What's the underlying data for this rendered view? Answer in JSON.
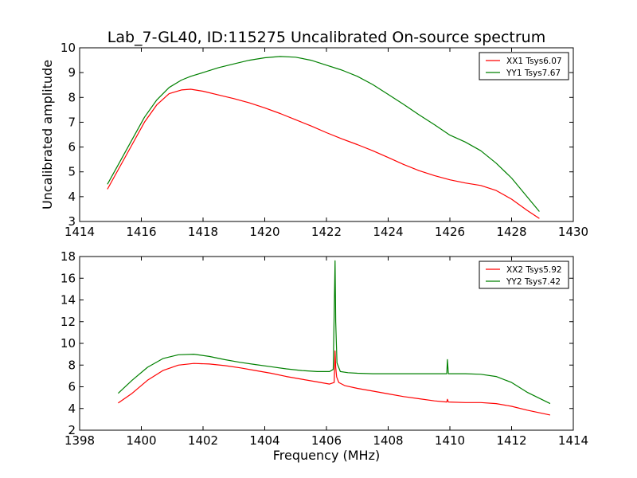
{
  "figure": {
    "title": "Lab_7-GL40, ID:115275 Uncalibrated On-source spectrum",
    "ylabel": "Uncalibrated amplitude",
    "xlabel": "Frequency (MHz)"
  },
  "chart_data": [
    {
      "type": "line",
      "title": "Lab_7-GL40, ID:115275 Uncalibrated On-source spectrum",
      "xlabel": "",
      "ylabel": "Uncalibrated amplitude",
      "xlim": [
        1414,
        1430
      ],
      "ylim": [
        3,
        10
      ],
      "xticks": [
        1414,
        1416,
        1418,
        1420,
        1422,
        1424,
        1426,
        1428,
        1430
      ],
      "yticks": [
        3,
        4,
        5,
        6,
        7,
        8,
        9,
        10
      ],
      "legend": "top-right",
      "grid": false,
      "series": [
        {
          "name": "XX1 Tsys6.07",
          "color": "#ff0000",
          "x": [
            1414.9,
            1415.3,
            1415.7,
            1416.1,
            1416.5,
            1416.9,
            1417.3,
            1417.6,
            1418.0,
            1418.5,
            1419.0,
            1419.5,
            1420.0,
            1420.5,
            1421.0,
            1421.5,
            1422.0,
            1422.5,
            1423.0,
            1423.5,
            1424.0,
            1424.5,
            1425.0,
            1425.5,
            1426.0,
            1426.5,
            1427.0,
            1427.5,
            1428.0,
            1428.5,
            1428.9
          ],
          "y": [
            4.3,
            5.2,
            6.1,
            7.0,
            7.7,
            8.15,
            8.3,
            8.33,
            8.25,
            8.1,
            7.95,
            7.78,
            7.58,
            7.35,
            7.1,
            6.85,
            6.58,
            6.33,
            6.1,
            5.85,
            5.58,
            5.3,
            5.05,
            4.85,
            4.68,
            4.55,
            4.45,
            4.25,
            3.9,
            3.45,
            3.12
          ]
        },
        {
          "name": "YY1 Tsys7.67",
          "color": "#008000",
          "x": [
            1414.9,
            1415.3,
            1415.7,
            1416.1,
            1416.5,
            1416.9,
            1417.3,
            1417.6,
            1418.0,
            1418.5,
            1419.0,
            1419.5,
            1420.0,
            1420.5,
            1421.0,
            1421.5,
            1422.0,
            1422.5,
            1423.0,
            1423.5,
            1424.0,
            1424.5,
            1425.0,
            1425.5,
            1426.0,
            1426.5,
            1427.0,
            1427.5,
            1428.0,
            1428.5,
            1428.9
          ],
          "y": [
            4.5,
            5.4,
            6.3,
            7.2,
            7.9,
            8.4,
            8.7,
            8.85,
            9.0,
            9.2,
            9.35,
            9.5,
            9.6,
            9.65,
            9.62,
            9.5,
            9.3,
            9.1,
            8.85,
            8.52,
            8.12,
            7.72,
            7.3,
            6.9,
            6.48,
            6.2,
            5.85,
            5.35,
            4.75,
            4.0,
            3.4
          ]
        }
      ]
    },
    {
      "type": "line",
      "title": "",
      "xlabel": "Frequency (MHz)",
      "ylabel": "",
      "xlim": [
        1398,
        1414
      ],
      "ylim": [
        2,
        18
      ],
      "xticks": [
        1398,
        1400,
        1402,
        1404,
        1406,
        1408,
        1410,
        1412,
        1414
      ],
      "yticks": [
        2,
        4,
        6,
        8,
        10,
        12,
        14,
        16,
        18
      ],
      "legend": "top-right",
      "grid": false,
      "series": [
        {
          "name": "XX2 Tsys5.92",
          "color": "#ff0000",
          "x": [
            1399.25,
            1399.7,
            1400.2,
            1400.7,
            1401.2,
            1401.7,
            1402.2,
            1402.7,
            1403.2,
            1403.7,
            1404.2,
            1404.7,
            1405.2,
            1405.7,
            1406.1,
            1406.25,
            1406.28,
            1406.3,
            1406.33,
            1406.4,
            1406.6,
            1407.0,
            1407.5,
            1408.0,
            1408.5,
            1409.0,
            1409.5,
            1409.9,
            1409.92,
            1409.95,
            1410.5,
            1411.0,
            1411.5,
            1412.0,
            1412.5,
            1413.25
          ],
          "y": [
            4.5,
            5.4,
            6.6,
            7.5,
            8.0,
            8.15,
            8.1,
            7.95,
            7.75,
            7.5,
            7.25,
            6.95,
            6.7,
            6.45,
            6.25,
            6.4,
            9.3,
            7.8,
            6.9,
            6.4,
            6.1,
            5.85,
            5.6,
            5.35,
            5.1,
            4.9,
            4.7,
            4.6,
            4.85,
            4.6,
            4.55,
            4.55,
            4.45,
            4.2,
            3.85,
            3.4
          ]
        },
        {
          "name": "YY2 Tsys7.42",
          "color": "#008000",
          "x": [
            1399.25,
            1399.7,
            1400.2,
            1400.7,
            1401.2,
            1401.7,
            1402.2,
            1402.7,
            1403.2,
            1403.7,
            1404.2,
            1404.7,
            1405.2,
            1405.7,
            1406.1,
            1406.22,
            1406.28,
            1406.3,
            1406.34,
            1406.45,
            1406.7,
            1407.0,
            1407.5,
            1408.0,
            1408.5,
            1409.0,
            1409.5,
            1409.9,
            1409.92,
            1409.95,
            1410.5,
            1411.0,
            1411.5,
            1412.0,
            1412.5,
            1413.25
          ],
          "y": [
            5.4,
            6.6,
            7.8,
            8.6,
            8.95,
            9.0,
            8.8,
            8.5,
            8.25,
            8.05,
            7.85,
            7.65,
            7.5,
            7.4,
            7.4,
            7.6,
            17.6,
            12.0,
            8.2,
            7.4,
            7.3,
            7.25,
            7.2,
            7.2,
            7.2,
            7.2,
            7.2,
            7.2,
            8.5,
            7.2,
            7.2,
            7.15,
            6.95,
            6.4,
            5.5,
            4.45
          ]
        }
      ]
    }
  ]
}
